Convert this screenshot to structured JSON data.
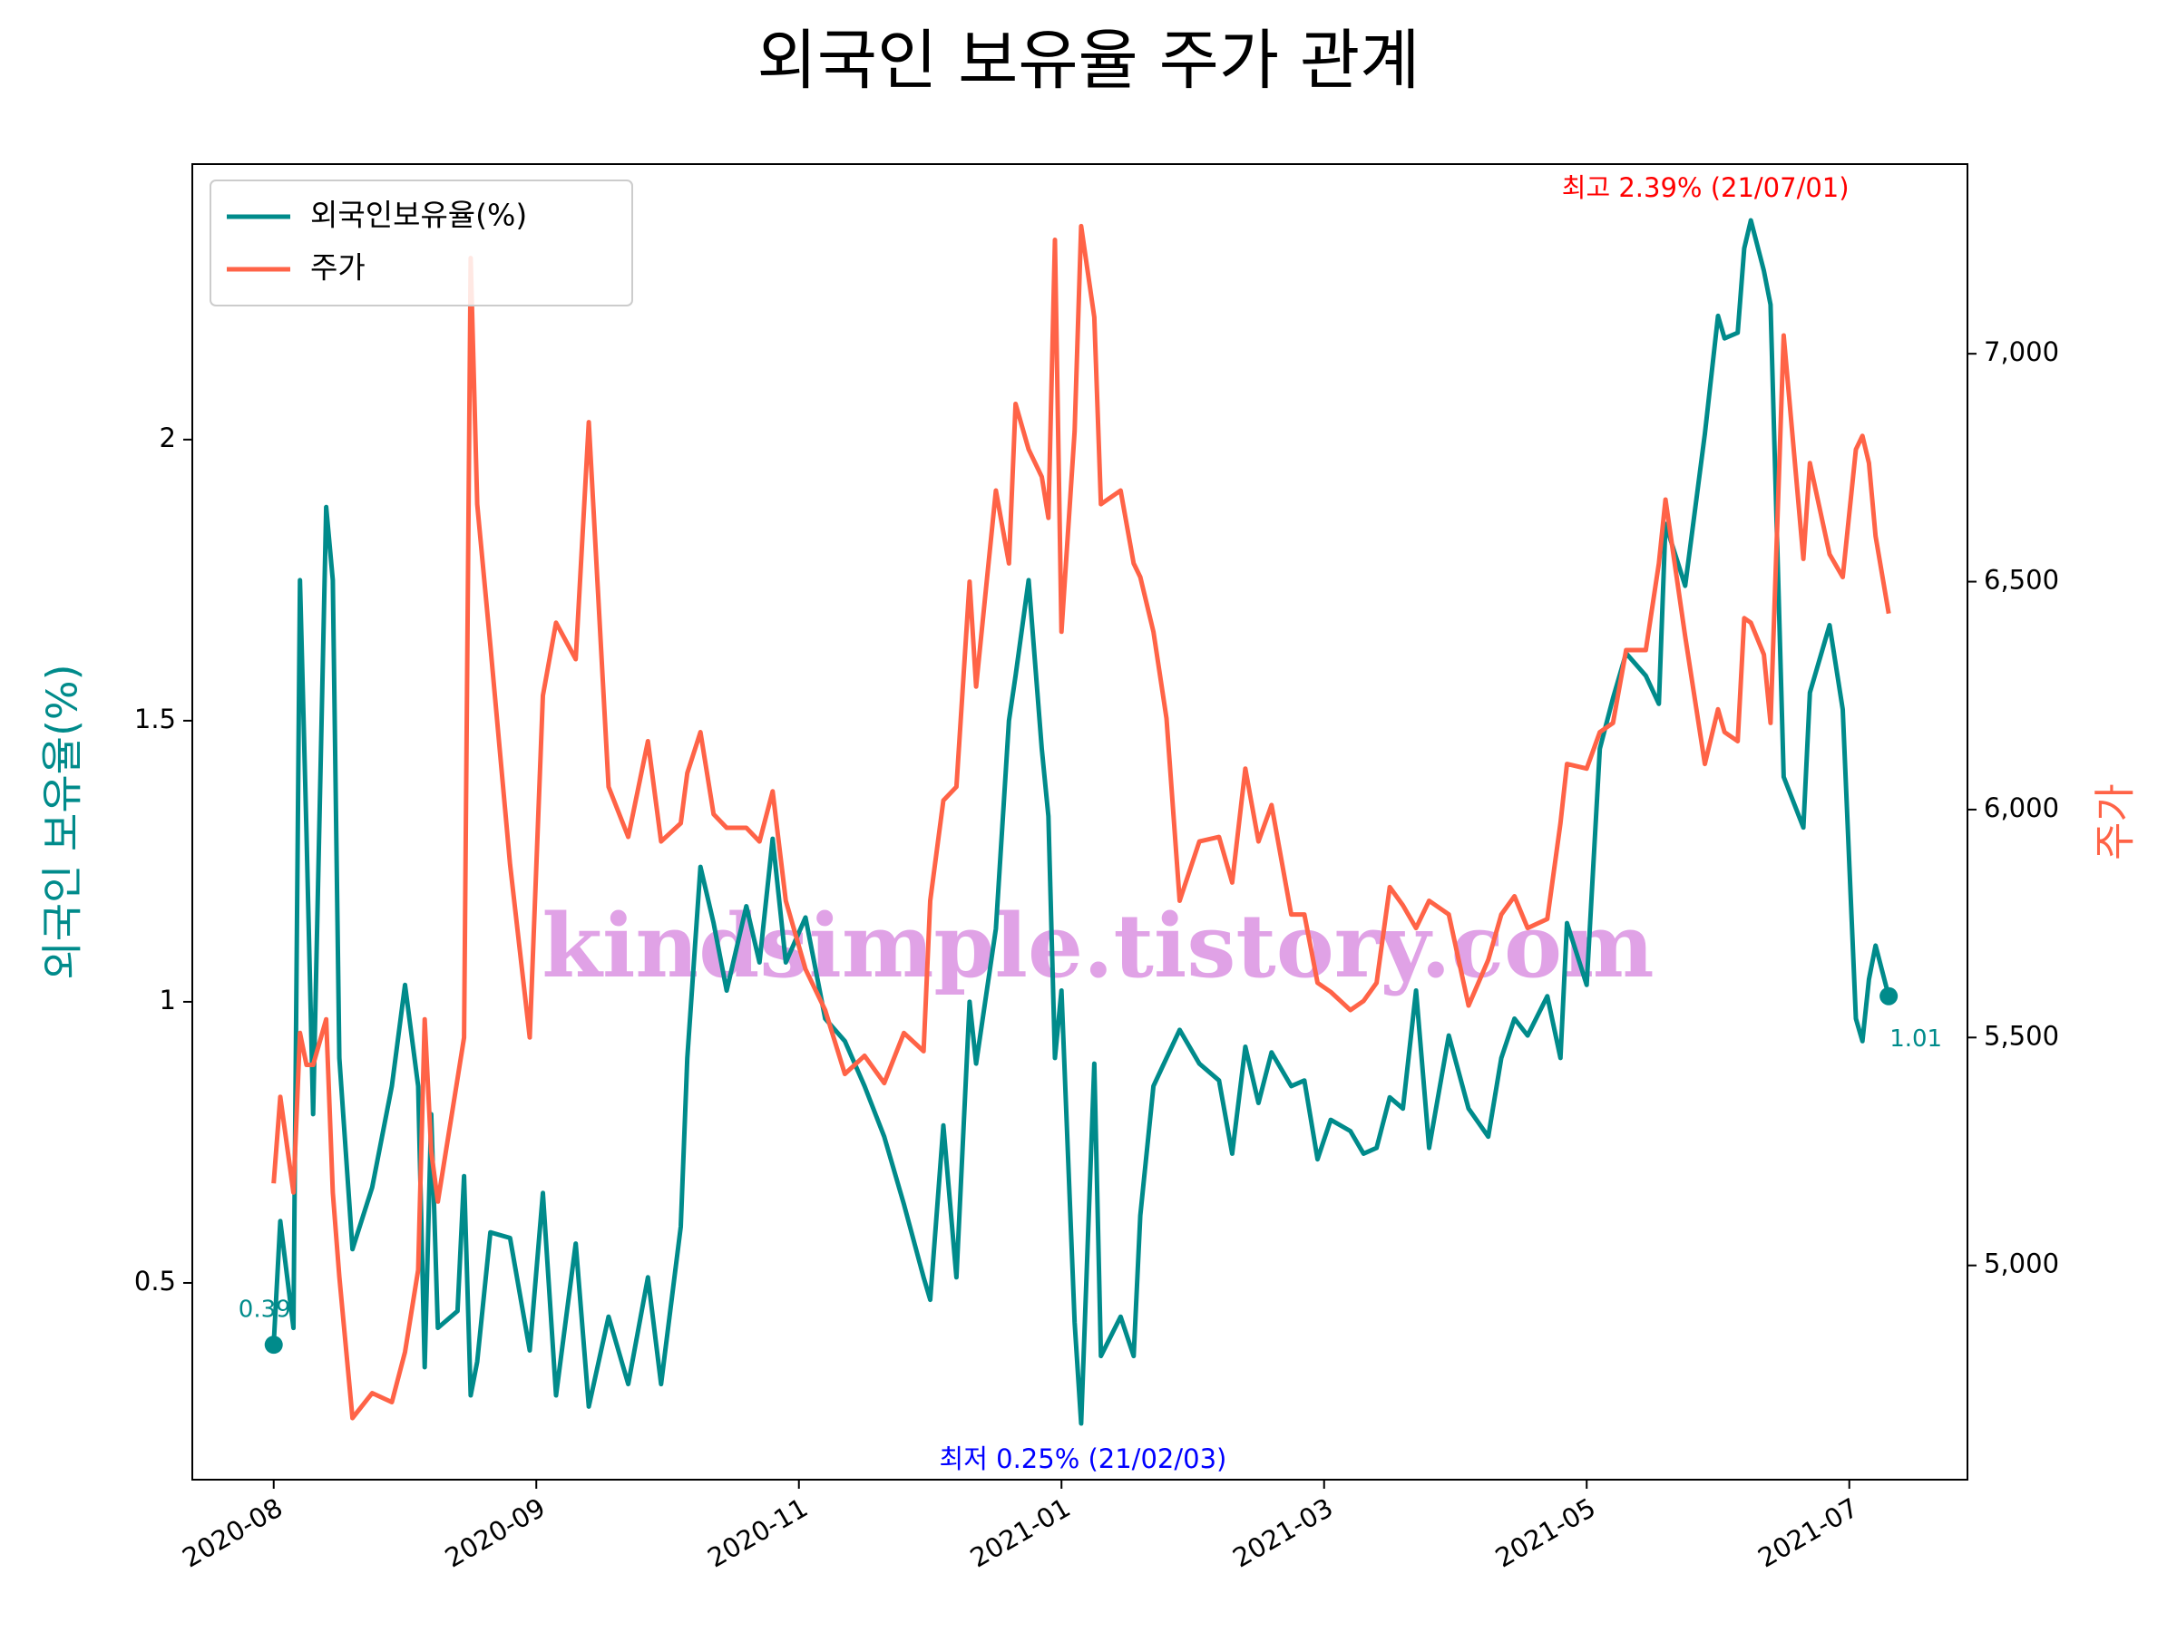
{
  "chart_data": {
    "type": "line",
    "title": "외국인 보유율 주가 관계",
    "ylabel": "외국인 보유율(%)",
    "y2label": "주가",
    "x": [
      0,
      1,
      3,
      4,
      5,
      6,
      8,
      9,
      10,
      12,
      15,
      18,
      20,
      22,
      23,
      24,
      25,
      28,
      29,
      30,
      31,
      33,
      36,
      39,
      41,
      43,
      46,
      48,
      51,
      54,
      57,
      59,
      62,
      63,
      65,
      67,
      69,
      72,
      74,
      76,
      78,
      81,
      84,
      87,
      90,
      93,
      96,
      99,
      100,
      102,
      104,
      106,
      107,
      110,
      112,
      113,
      115,
      117,
      118,
      119,
      120,
      122,
      123,
      125,
      126,
      129,
      131,
      132,
      134,
      136,
      138,
      141,
      144,
      146,
      148,
      150,
      152,
      155,
      157,
      159,
      161,
      164,
      166,
      168,
      170,
      172,
      174,
      176,
      179,
      182,
      185,
      187,
      189,
      191,
      194,
      196,
      197,
      200,
      202,
      204,
      206,
      209,
      211,
      212,
      215,
      218,
      220,
      221,
      223,
      224,
      225,
      227,
      228,
      230,
      233,
      234,
      237,
      239,
      241,
      242,
      243,
      244,
      246
    ],
    "series": [
      {
        "name": "외국인보유율(%)",
        "color": "#008b8b",
        "axis": "y",
        "values": [
          0.39,
          0.61,
          0.42,
          1.75,
          1.3,
          0.8,
          1.88,
          1.75,
          0.9,
          0.56,
          0.67,
          0.85,
          1.03,
          0.85,
          0.35,
          0.8,
          0.42,
          0.45,
          0.69,
          0.3,
          0.36,
          0.59,
          0.58,
          0.38,
          0.66,
          0.3,
          0.57,
          0.28,
          0.44,
          0.32,
          0.51,
          0.32,
          0.6,
          0.9,
          1.24,
          1.14,
          1.02,
          1.17,
          1.07,
          1.29,
          1.07,
          1.15,
          0.97,
          0.93,
          0.85,
          0.76,
          0.64,
          0.51,
          0.47,
          0.78,
          0.51,
          1.0,
          0.89,
          1.13,
          1.5,
          1.58,
          1.75,
          1.45,
          1.33,
          0.9,
          1.02,
          0.43,
          0.25,
          0.89,
          0.37,
          0.44,
          0.37,
          0.62,
          0.85,
          0.9,
          0.95,
          0.89,
          0.86,
          0.73,
          0.92,
          0.82,
          0.91,
          0.85,
          0.86,
          0.72,
          0.79,
          0.77,
          0.73,
          0.74,
          0.83,
          0.81,
          1.02,
          0.74,
          0.94,
          0.81,
          0.76,
          0.9,
          0.97,
          0.94,
          1.01,
          0.9,
          1.14,
          1.03,
          1.45,
          1.54,
          1.62,
          1.58,
          1.53,
          1.85,
          1.74,
          2.01,
          2.22,
          2.18,
          2.19,
          2.34,
          2.39,
          2.3,
          2.24,
          1.4,
          1.31,
          1.55,
          1.67,
          1.52,
          0.97,
          0.93,
          1.04,
          1.1,
          1.01
        ]
      },
      {
        "name": "주가",
        "color": "#ff6347",
        "axis": "y2",
        "values": [
          5180,
          5370,
          5160,
          5510,
          5440,
          5440,
          5540,
          5160,
          4975,
          4665,
          4720,
          4700,
          4810,
          4990,
          5540,
          5250,
          5140,
          5410,
          5500,
          7210,
          6670,
          6360,
          5880,
          5500,
          6250,
          6410,
          6330,
          6850,
          6050,
          5940,
          6150,
          5930,
          5970,
          6080,
          6170,
          5990,
          5960,
          5960,
          5930,
          6040,
          5800,
          5650,
          5560,
          5420,
          5460,
          5400,
          5510,
          5470,
          5800,
          6020,
          6050,
          6500,
          6270,
          6700,
          6540,
          6890,
          6790,
          6730,
          6640,
          7250,
          6390,
          6830,
          7280,
          7080,
          6670,
          6700,
          6540,
          6510,
          6390,
          6200,
          5800,
          5930,
          5940,
          5840,
          6090,
          5930,
          6010,
          5770,
          5770,
          5620,
          5600,
          5560,
          5580,
          5620,
          5830,
          5790,
          5740,
          5800,
          5770,
          5570,
          5670,
          5770,
          5810,
          5740,
          5760,
          5970,
          6100,
          6090,
          6170,
          6190,
          6350,
          6350,
          6540,
          6680,
          6380,
          6100,
          6220,
          6170,
          6150,
          6420,
          6410,
          6340,
          6190,
          7040,
          6550,
          6760,
          6560,
          6510,
          6790,
          6820,
          6760,
          6600,
          6430
        ]
      }
    ],
    "xlim": [
      -12.4,
      258
    ],
    "xticks": [
      {
        "value": 0,
        "label": "2020-08"
      },
      {
        "value": 40,
        "label": "2020-09"
      },
      {
        "value": 80,
        "label": "2020-11"
      },
      {
        "value": 120,
        "label": "2021-01"
      },
      {
        "value": 160,
        "label": "2021-03"
      },
      {
        "value": 200,
        "label": "2021-05"
      },
      {
        "value": 240,
        "label": "2021-07"
      }
    ],
    "ylim": [
      0.15,
      2.49
    ],
    "yticks": [
      0.5,
      1.0,
      1.5,
      2.0
    ],
    "y2lim": [
      4530,
      7416
    ],
    "y2ticks": [
      {
        "value": 5000,
        "label": "5,000"
      },
      {
        "value": 5500,
        "label": "5,500"
      },
      {
        "value": 6000,
        "label": "6,000"
      },
      {
        "value": 6500,
        "label": "6,500"
      },
      {
        "value": 7000,
        "label": "7,000"
      }
    ],
    "legend": "upper left",
    "annotations": [
      {
        "text": "0.39",
        "color": "#008b8b"
      },
      {
        "text": "1.01",
        "color": "#008b8b"
      },
      {
        "text": "최고 2.39% (21/07/01)",
        "color": "#ff0000"
      },
      {
        "text": "최저 0.25% (21/02/03)",
        "color": "#0000ff"
      }
    ],
    "watermark": "kindsimple.tistory.com"
  }
}
